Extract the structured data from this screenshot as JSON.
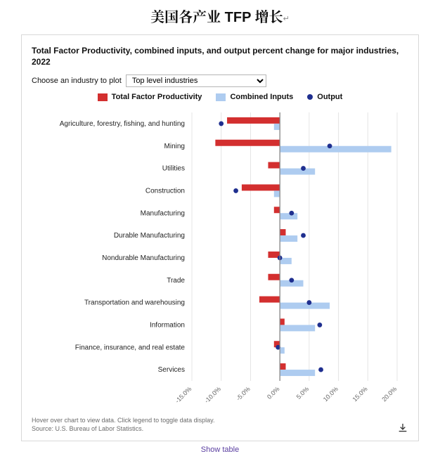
{
  "heading": {
    "cn_a": "美国各产业",
    "latin": " TFP ",
    "cn_b": "增长",
    "cr": "↵"
  },
  "chart": {
    "type": "grouped-horizontal-bar+marker",
    "title": "Total Factor Productivity, combined inputs, and output percent change for major industries, 2022",
    "control_label": "Choose an industry to plot",
    "control_value": "Top level industries",
    "legend": {
      "tfp": {
        "label": "Total Factor Productivity",
        "color": "#d32f2f"
      },
      "inputs": {
        "label": "Combined Inputs",
        "color": "#aeccf0"
      },
      "output": {
        "label": "Output",
        "color": "#1f2f8f"
      }
    },
    "x_axis": {
      "min": -15,
      "max": 20,
      "tick_step": 5,
      "tick_suffix": "%",
      "tick_rotation": -45,
      "zero_line_color": "#888888",
      "grid_color": "#e4e4e4",
      "label_color": "#666666",
      "label_fontsize": 9
    },
    "y_axis": {
      "label_fontsize": 10,
      "label_color": "#222222"
    },
    "bar": {
      "height": 9,
      "gap_within": 0,
      "gap_between": 22
    },
    "marker": {
      "radius": 3.4
    },
    "background_color": "#ffffff",
    "series": [
      {
        "label": "Agriculture, forestry, fishing, and hunting",
        "tfp": -9.0,
        "inputs": -1.0,
        "output": -10.0
      },
      {
        "label": "Mining",
        "tfp": -11.0,
        "inputs": 19.0,
        "output": 8.5
      },
      {
        "label": "Utilities",
        "tfp": -2.0,
        "inputs": 6.0,
        "output": 4.0
      },
      {
        "label": "Construction",
        "tfp": -6.5,
        "inputs": -1.0,
        "output": -7.5
      },
      {
        "label": "Manufacturing",
        "tfp": -1.0,
        "inputs": 3.0,
        "output": 2.0
      },
      {
        "label": "Durable Manufacturing",
        "tfp": 1.0,
        "inputs": 3.0,
        "output": 4.0
      },
      {
        "label": "Nondurable Manufacturing",
        "tfp": -2.0,
        "inputs": 2.0,
        "output": 0.0
      },
      {
        "label": "Trade",
        "tfp": -2.0,
        "inputs": 4.0,
        "output": 2.0
      },
      {
        "label": "Transportation and warehousing",
        "tfp": -3.5,
        "inputs": 8.5,
        "output": 5.0
      },
      {
        "label": "Information",
        "tfp": 0.8,
        "inputs": 6.0,
        "output": 6.8
      },
      {
        "label": "Finance, insurance, and real estate",
        "tfp": -1.0,
        "inputs": 0.8,
        "output": -0.3
      },
      {
        "label": "Services",
        "tfp": 1.0,
        "inputs": 6.0,
        "output": 7.0
      }
    ],
    "footnote_a": "Hover over chart to view data. Click legend to toggle data display.",
    "footnote_b": "Source: U.S. Bureau of Labor Statistics.",
    "show_table_label": "Show table",
    "download_label": "Download"
  }
}
